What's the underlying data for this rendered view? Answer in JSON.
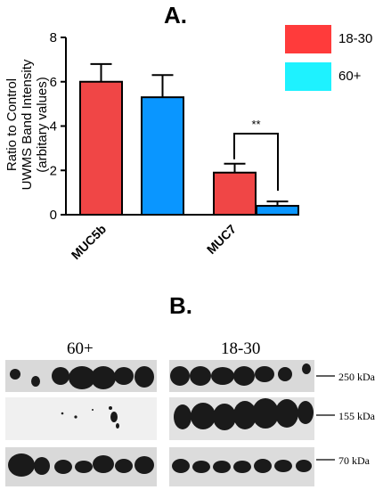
{
  "panels": {
    "a_title": "A.",
    "b_title": "B."
  },
  "chart_data": {
    "type": "bar",
    "categories": [
      "MUC5b",
      "MUC7"
    ],
    "series": [
      {
        "name": "18-30",
        "color": "#f04646",
        "values": [
          6.0,
          1.9
        ],
        "errors": [
          0.8,
          0.4
        ]
      },
      {
        "name": "60+",
        "color": "#0a96ff",
        "values": [
          5.3,
          0.4
        ],
        "errors": [
          1.0,
          0.2
        ]
      }
    ],
    "ylabel_lines": [
      "Ratio to Control",
      "UWMS Band Intensity",
      "(arbitary values)"
    ],
    "yticks": [
      0,
      2,
      4,
      6,
      8
    ],
    "ylim": [
      0,
      8
    ],
    "significance": {
      "between": "MUC7",
      "label": "**"
    },
    "legend": {
      "placement": "top-right",
      "items": [
        {
          "label": "18-30",
          "color": "#ff3b3b"
        },
        {
          "label": "60+",
          "color": "#1ef2ff"
        }
      ]
    }
  },
  "blot": {
    "group_left": "60+",
    "group_right": "18-30",
    "markers": [
      "250 kDa",
      "155 kDa",
      "70 kDa"
    ]
  }
}
